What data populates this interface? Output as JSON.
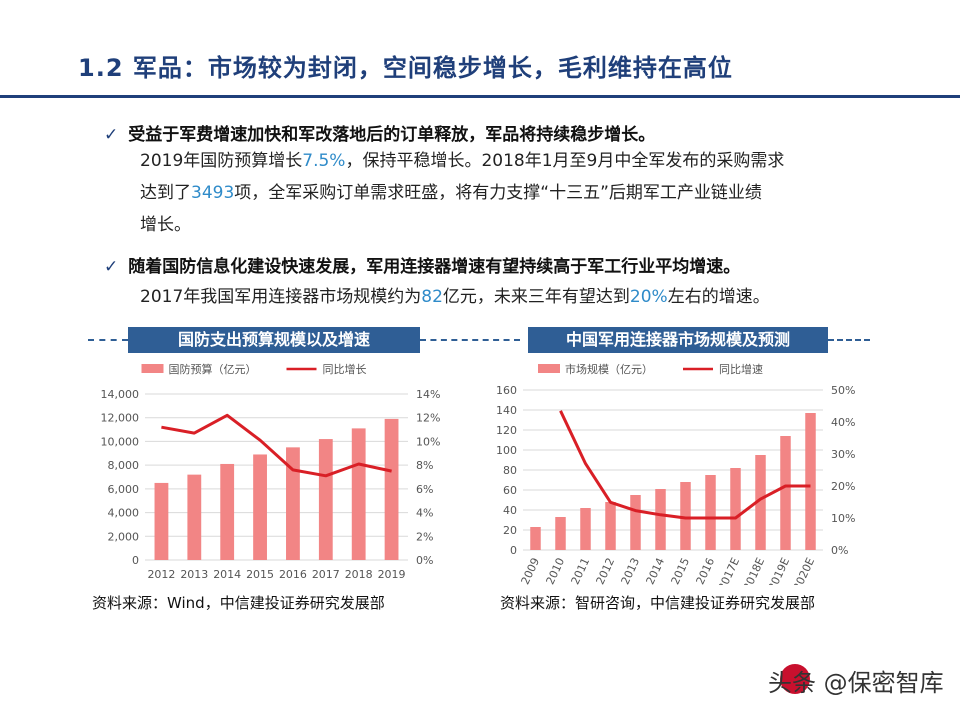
{
  "header": {
    "title": "1.2 军品：市场较为封闭，空间稳步增长，毛利维持在高位"
  },
  "bullets": [
    {
      "check": "✓",
      "heading": "受益于军费增速加快和军改落地后的订单释放，军品将持续稳步增长。",
      "lines": [
        {
          "parts": [
            "2019年国防预算增长",
            "7.5%",
            "，保持平稳增长。2018年1月至9月中全军发布的采购需求"
          ]
        },
        {
          "parts": [
            "达到了",
            "3493",
            "项，全军采购订单需求旺盛，将有力支撑“十三五”后期军工产业链业绩"
          ]
        },
        {
          "parts": [
            "增长。"
          ]
        }
      ]
    },
    {
      "check": "✓",
      "heading": "随着国防信息化建设快速发展，军用连接器增速有望持续高于军工行业平均增速。",
      "lines": [
        {
          "parts": [
            "2017年我国军用连接器市场规模约为",
            "82",
            "亿元，未来三年有望达到",
            "20%",
            "左右的增速。"
          ]
        }
      ]
    }
  ],
  "charts": {
    "left_header": "国防支出预算规模以及增速",
    "right_header": "中国军用连接器市场规模及预测",
    "left_source": "资料来源：Wind，中信建投证券研究发展部",
    "right_source": "资料来源：智研咨询，中信建投证券研究发展部"
  },
  "colors": {
    "bar": "#f28585",
    "line": "#d91f26",
    "header": "#2f5e95",
    "title": "#1f3f7a",
    "highlight": "#2f8bc9"
  },
  "watermark": "头条 @保密智库",
  "chart_data": [
    {
      "type": "bar",
      "categories": [
        "2012",
        "2013",
        "2014",
        "2015",
        "2016",
        "2017",
        "2018",
        "2019"
      ],
      "series": [
        {
          "name": "国防预算（亿元）",
          "values": [
            6500,
            7200,
            8100,
            8900,
            9500,
            10200,
            11100,
            11900
          ],
          "axis": "left"
        },
        {
          "name": "同比增长",
          "type": "line",
          "values": [
            11.2,
            10.7,
            12.2,
            10.1,
            7.6,
            7.1,
            8.1,
            7.5
          ],
          "axis": "right",
          "unit": "%"
        }
      ],
      "yticks_left": [
        "0",
        "2,000",
        "4,000",
        "6,000",
        "8,000",
        "10,000",
        "12,000",
        "14,000"
      ],
      "yticks_right": [
        "0%",
        "2%",
        "4%",
        "6%",
        "8%",
        "10%",
        "12%",
        "14%"
      ],
      "ylim": [
        0,
        14000
      ],
      "y2lim": [
        0,
        14
      ],
      "legend": "top"
    },
    {
      "type": "bar",
      "categories": [
        "2009",
        "2010",
        "2011",
        "2012",
        "2013",
        "2014",
        "2015",
        "2016",
        "2017E",
        "2018E",
        "2019E",
        "2020E"
      ],
      "series": [
        {
          "name": "市场规模（亿元）",
          "values": [
            23,
            33,
            42,
            48,
            55,
            61,
            68,
            75,
            82,
            95,
            114,
            137
          ],
          "axis": "left"
        },
        {
          "name": "同比增速",
          "type": "line",
          "values": [
            null,
            43.5,
            27,
            14.9,
            12.3,
            11,
            10,
            10,
            10,
            15.9,
            20,
            20
          ],
          "axis": "right",
          "unit": "%"
        }
      ],
      "yticks_left": [
        "0",
        "20",
        "40",
        "60",
        "80",
        "100",
        "120",
        "140",
        "160"
      ],
      "yticks_right": [
        "0%",
        "10%",
        "20%",
        "30%",
        "40%",
        "50%"
      ],
      "ylim": [
        0,
        160
      ],
      "y2lim": [
        0,
        50
      ],
      "legend": "top"
    }
  ]
}
